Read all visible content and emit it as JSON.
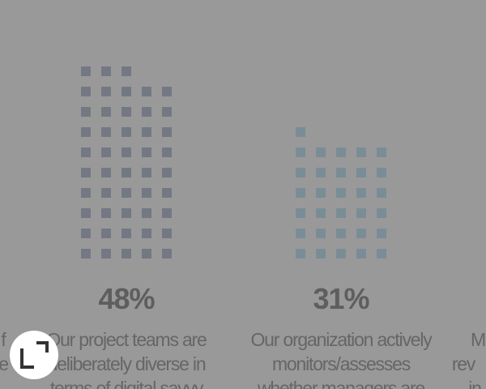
{
  "chart_data": {
    "type": "waffle",
    "values": [
      48,
      31
    ],
    "value_labels": [
      "48%",
      "31%"
    ],
    "colors": [
      "#737883",
      "#7a8d97"
    ],
    "categories": [
      [
        "Our project teams are",
        "deliberately diverse in",
        "terms of digital savvy"
      ],
      [
        "Our organization actively",
        "monitors/assesses",
        "whether managers are"
      ]
    ],
    "edge_text": {
      "left": [
        "f",
        "e"
      ],
      "right": [
        "M",
        "rev",
        "in"
      ]
    }
  }
}
